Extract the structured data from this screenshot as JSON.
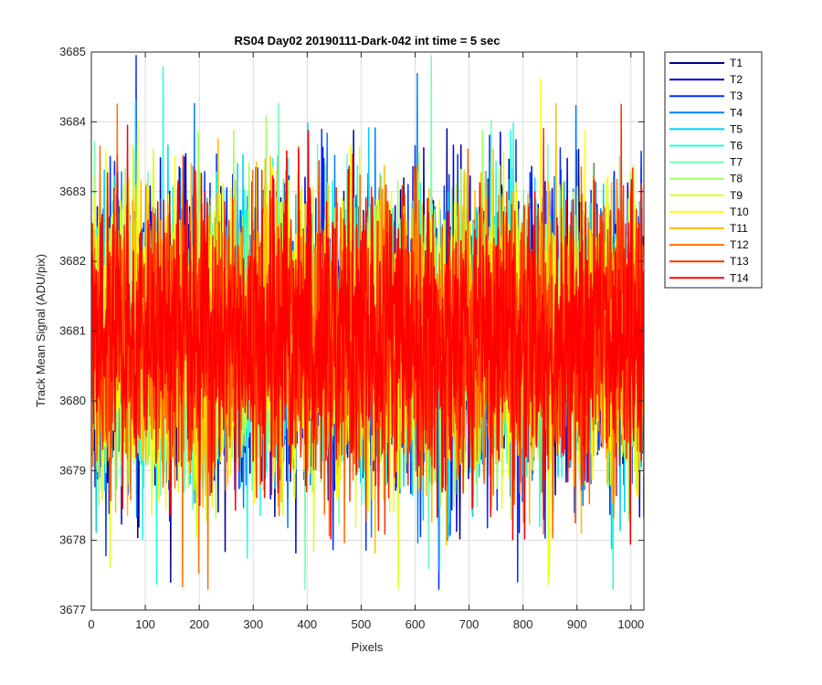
{
  "chart_data": {
    "type": "line",
    "title": "RS04 Day02 20190111-Dark-042 int time = 5 sec",
    "xlabel": "Pixels",
    "ylabel": "Track Mean Signal (ADU/pix)",
    "xlim": [
      0,
      1024
    ],
    "ylim": [
      3677,
      3685
    ],
    "x_ticks": [
      0,
      100,
      200,
      300,
      400,
      500,
      600,
      700,
      800,
      900,
      1000
    ],
    "y_ticks": [
      3677,
      3678,
      3679,
      3680,
      3681,
      3682,
      3683,
      3684,
      3685
    ],
    "grid": true,
    "legend_position": "outside-top-right",
    "x_range": [
      1,
      1024
    ],
    "noise_description": "each track fluctuates around ~3681 with std ~1.0",
    "series": [
      {
        "name": "T1",
        "color": "#00008f",
        "mean": 3680.9,
        "std": 1.0
      },
      {
        "name": "T2",
        "color": "#0000df",
        "mean": 3680.9,
        "std": 1.0
      },
      {
        "name": "T3",
        "color": "#0030ff",
        "mean": 3680.9,
        "std": 1.0
      },
      {
        "name": "T4",
        "color": "#0080ff",
        "mean": 3680.9,
        "std": 1.0
      },
      {
        "name": "T5",
        "color": "#00cfff",
        "mean": 3680.9,
        "std": 1.0
      },
      {
        "name": "T6",
        "color": "#20ffdf",
        "mean": 3680.9,
        "std": 1.0
      },
      {
        "name": "T7",
        "color": "#70ffb0",
        "mean": 3680.9,
        "std": 1.0
      },
      {
        "name": "T8",
        "color": "#a0ff60",
        "mean": 3680.9,
        "std": 1.0
      },
      {
        "name": "T9",
        "color": "#dfff20",
        "mean": 3680.9,
        "std": 1.0
      },
      {
        "name": "T10",
        "color": "#ffff00",
        "mean": 3680.9,
        "std": 1.0
      },
      {
        "name": "T11",
        "color": "#ffbf00",
        "mean": 3680.9,
        "std": 1.0
      },
      {
        "name": "T12",
        "color": "#ff7000",
        "mean": 3680.9,
        "std": 1.0
      },
      {
        "name": "T13",
        "color": "#ff3000",
        "mean": 3680.9,
        "std": 1.0
      },
      {
        "name": "T14",
        "color": "#ff0000",
        "mean": 3680.9,
        "std": 1.0
      }
    ]
  }
}
